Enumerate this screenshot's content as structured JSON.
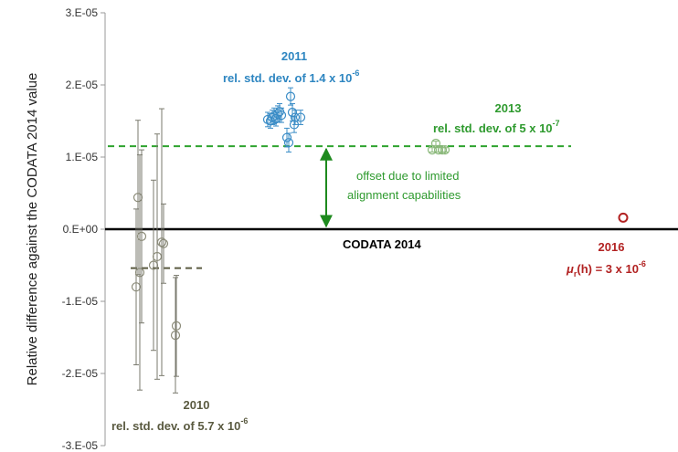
{
  "chart_data": {
    "type": "scatter",
    "ylabel": "Relative difference against the CODATA 2014 value",
    "ylim": [
      -3e-05,
      3e-05
    ],
    "yticks": [
      3e-05,
      2e-05,
      1e-05,
      0,
      -1e-05,
      -2e-05,
      -3e-05
    ],
    "ytick_labels": [
      "3.E-05",
      "2.E-05",
      "1.E-05",
      "0.E+00",
      "-1.E-05",
      "-2.E-05",
      "-3.E-05"
    ],
    "grid": false,
    "series": [
      {
        "name": "2010",
        "color": "#8c8c7a",
        "error_color": "#7a7a6e",
        "points": [
          {
            "x": 149,
            "y": -8e-06,
            "err": 1.08e-05
          },
          {
            "x": 151,
            "y": 4.4e-06,
            "err": 1.07e-05
          },
          {
            "x": 153,
            "y": -6e-06,
            "err": 1.63e-05
          },
          {
            "x": 155,
            "y": -1e-06,
            "err": 1.2e-05
          },
          {
            "x": 168,
            "y": -5e-06,
            "err": 1.18e-05
          },
          {
            "x": 172,
            "y": -3.8e-06,
            "err": 1.7e-05
          },
          {
            "x": 177,
            "y": -1.8e-06,
            "err": 1.85e-05
          },
          {
            "x": 179,
            "y": -2e-06,
            "err": 5.5e-06
          },
          {
            "x": 192,
            "y": -1.47e-05,
            "err": 8e-06
          },
          {
            "x": 193,
            "y": -1.34e-05,
            "err": 7e-06
          }
        ],
        "mean_line": {
          "y": -5.4e-06,
          "x_start": 143,
          "x_end": 221
        },
        "label_year": "2010",
        "label_text": "rel. std. dev. of 5.7 x 10",
        "label_exp": "-6",
        "label_color": "#5a5a40"
      },
      {
        "name": "2011",
        "color": "#3a8cc6",
        "error_color": "#3a8cc6",
        "points": [
          {
            "x": 293,
            "y": 1.52e-05,
            "err": 1e-06
          },
          {
            "x": 296,
            "y": 1.5e-05,
            "err": 1e-06
          },
          {
            "x": 298,
            "y": 1.55e-05,
            "err": 1e-06
          },
          {
            "x": 300,
            "y": 1.57e-05,
            "err": 1.1e-06
          },
          {
            "x": 302,
            "y": 1.53e-05,
            "err": 1e-06
          },
          {
            "x": 304,
            "y": 1.6e-05,
            "err": 1.1e-06
          },
          {
            "x": 306,
            "y": 1.63e-05,
            "err": 1.1e-06
          },
          {
            "x": 308,
            "y": 1.58e-05,
            "err": 1e-06
          },
          {
            "x": 314,
            "y": 1.27e-05,
            "err": 1.3e-06
          },
          {
            "x": 316,
            "y": 1.2e-05,
            "err": 1.3e-06
          },
          {
            "x": 318,
            "y": 1.84e-05,
            "err": 1.2e-06
          },
          {
            "x": 320,
            "y": 1.62e-05,
            "err": 1.2e-06
          },
          {
            "x": 322,
            "y": 1.45e-05,
            "err": 1.1e-06
          },
          {
            "x": 323,
            "y": 1.55e-05,
            "err": 1e-06
          },
          {
            "x": 329,
            "y": 1.55e-05,
            "err": 1e-06
          }
        ],
        "label_year": "2011",
        "label_text": "rel. std. dev. of 1.4 x 10",
        "label_exp": "-6",
        "label_color": "#2e86c1"
      },
      {
        "name": "2013",
        "color": "#8ab87a",
        "error_color": "#8ab87a",
        "points": [
          {
            "x": 473,
            "y": 1.1e-05,
            "err": 3e-07
          },
          {
            "x": 477,
            "y": 1.19e-05,
            "err": 3e-07
          },
          {
            "x": 480,
            "y": 1.1e-05,
            "err": 3e-07
          },
          {
            "x": 484,
            "y": 1.1e-05,
            "err": 3e-07
          },
          {
            "x": 487,
            "y": 1.1e-05,
            "err": 3e-07
          }
        ],
        "mean_line": {
          "y": 1.15e-05,
          "x_start": 118,
          "x_end": 625
        },
        "label_year": "2013",
        "label_text": "rel. std. dev. of 5 x 10",
        "label_exp": "-7",
        "label_color": "#2e9a2e"
      },
      {
        "name": "2016",
        "color": "#b22222",
        "error_color": "#b22222",
        "points": [
          {
            "x": 682,
            "y": 1.6e-06,
            "err": 0
          }
        ],
        "label_year": "2016",
        "label_line2_prefix": "μ",
        "label_line2_sub": "r",
        "label_line2_mid": "(h) = 3 x 10",
        "label_exp": "-6",
        "label_color": "#b22222"
      }
    ],
    "reference_line": {
      "y": 0,
      "label": "CODATA 2014"
    },
    "offset_annotation": {
      "line1": "offset due to limited",
      "line2": "alignment capabilities",
      "color": "#2e9a2e"
    }
  }
}
